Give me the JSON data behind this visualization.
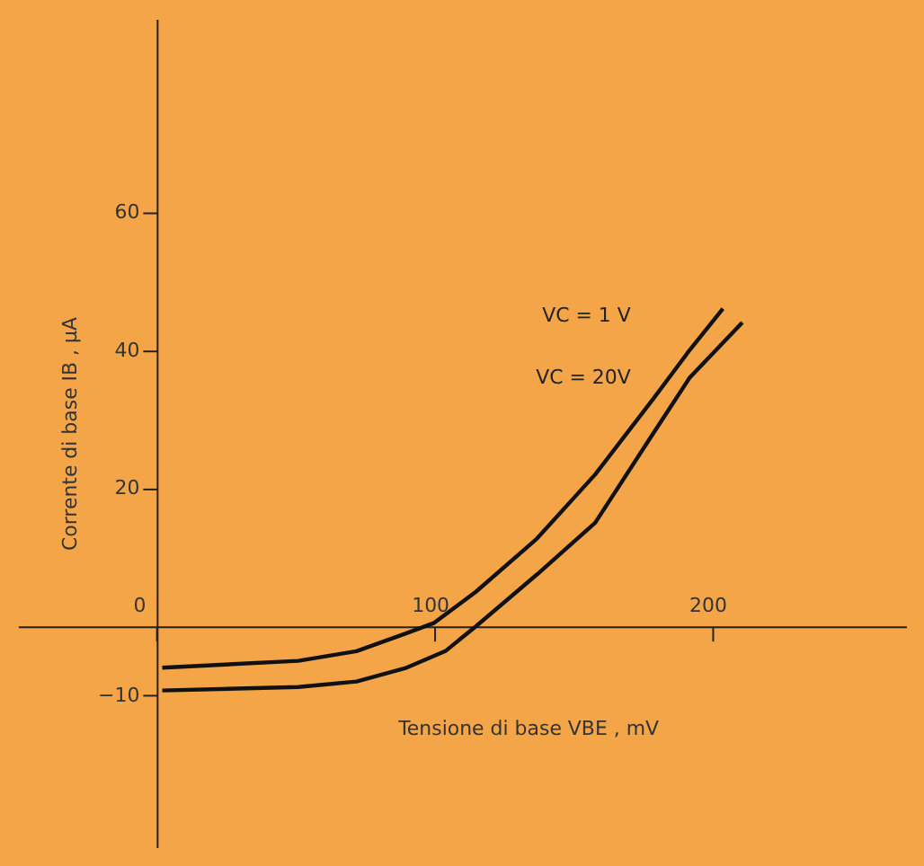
{
  "chart_data": {
    "type": "line",
    "xlabel": "Tensione di base VBE , mV",
    "ylabel": "Corrente di base IB , μA",
    "xlim": [
      -50,
      270
    ],
    "ylim": [
      -32,
      88
    ],
    "xticks": [
      0,
      100,
      200
    ],
    "yticks": [
      -10,
      20,
      40,
      60
    ],
    "grid": false,
    "marker": "none",
    "line_style": "solid",
    "series": [
      {
        "color": "#111111",
        "x": [
          2,
          51,
          72,
          90,
          100,
          115,
          137,
          158,
          179,
          192,
          204
        ],
        "values": [
          -6,
          -5,
          -3.6,
          -1,
          0.5,
          5,
          12.7,
          22,
          33,
          40,
          46
        ]
      },
      {
        "color": "#111111",
        "x": [
          2,
          51,
          72,
          90,
          104,
          115,
          137,
          158,
          179,
          192,
          211
        ],
        "values": [
          -9.3,
          -8.8,
          -8,
          -6,
          -3.6,
          0,
          7.5,
          15,
          28,
          36,
          44
        ]
      }
    ],
    "annotations": [
      "VC = 1 V",
      "VC = 20V"
    ]
  }
}
